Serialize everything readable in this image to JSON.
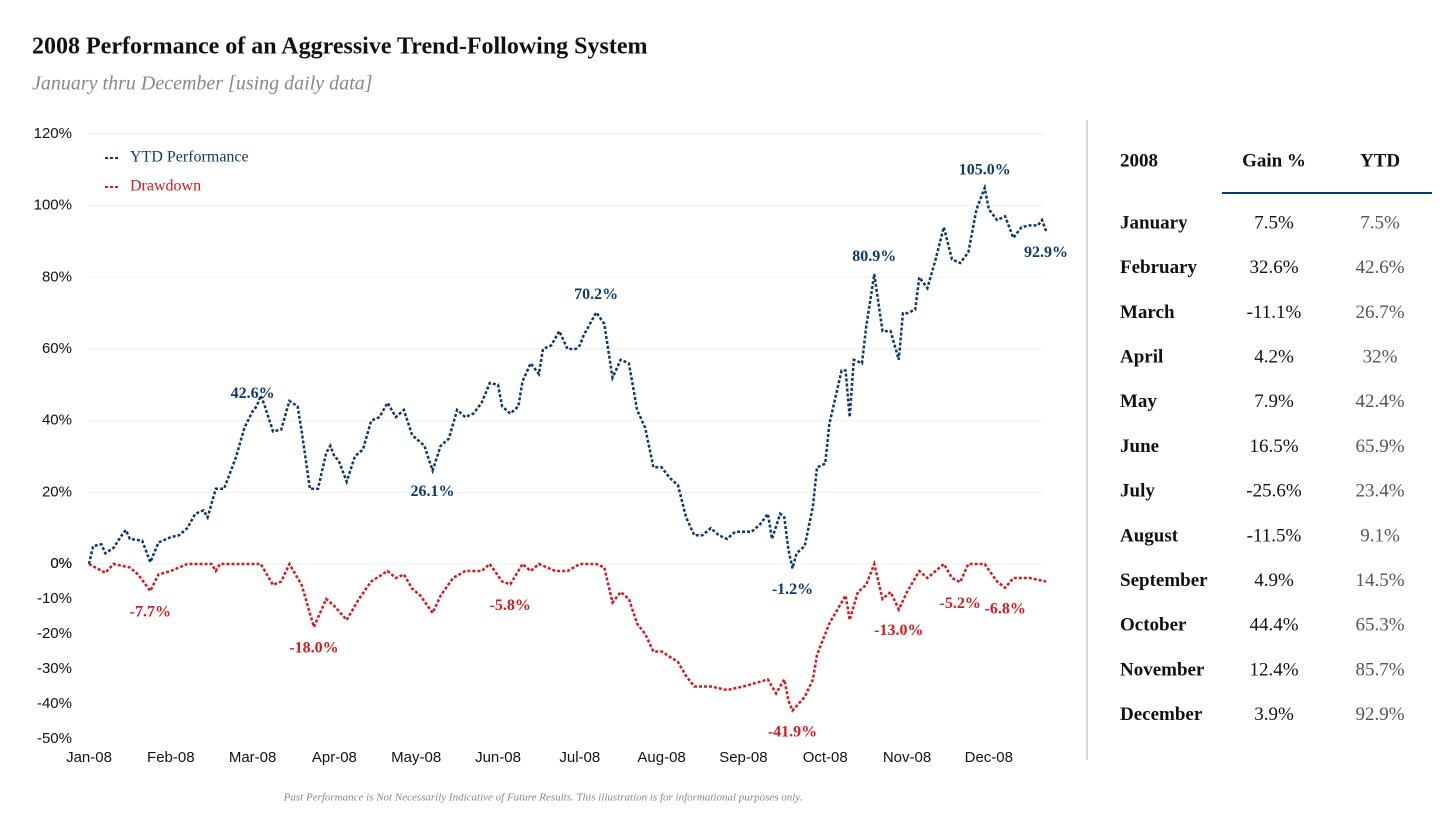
{
  "chart_data": {
    "type": "line",
    "title": "2008 Performance of an Aggressive Trend-Following System",
    "subtitle": "January thru December [using daily data]",
    "note": "Past Performance is Not Necessarily Indicative of Future Results. This illustration is for informational purposes only.",
    "xlim": [
      0,
      12
    ],
    "xticks": [
      {
        "value": 0,
        "label": "Jan-08"
      },
      {
        "value": 1,
        "label": "Feb-08"
      },
      {
        "value": 2,
        "label": "Mar-08"
      },
      {
        "value": 3,
        "label": "Apr-08"
      },
      {
        "value": 4,
        "label": "May-08"
      },
      {
        "value": 5,
        "label": "Jun-08"
      },
      {
        "value": 6,
        "label": "Jul-08"
      },
      {
        "value": 7,
        "label": "Aug-08"
      },
      {
        "value": 8,
        "label": "Sep-08"
      },
      {
        "value": 9,
        "label": "Oct-08"
      },
      {
        "value": 10,
        "label": "Nov-08"
      },
      {
        "value": 11,
        "label": "Dec-08"
      }
    ],
    "ylim": [
      0,
      120
    ],
    "yticks": [
      {
        "value": 0,
        "label": "0%"
      },
      {
        "value": 20,
        "label": "20%"
      },
      {
        "value": 40,
        "label": "40%"
      },
      {
        "value": 60,
        "label": "60%"
      },
      {
        "value": 80,
        "label": "80%"
      },
      {
        "value": 100,
        "label": "100%"
      },
      {
        "value": 120,
        "label": "120%"
      }
    ],
    "y2lim": [
      -50,
      0
    ],
    "y2ticks": [
      {
        "value": -50,
        "label": "-50%"
      },
      {
        "value": -40,
        "label": "-40%"
      },
      {
        "value": -30,
        "label": "-30%"
      },
      {
        "value": -20,
        "label": "-20%"
      },
      {
        "value": -10,
        "label": "-10%"
      },
      {
        "value": 0,
        "label": "0%"
      }
    ],
    "grid": true,
    "legend": "upper left",
    "line_style": "dotted",
    "series": [
      {
        "name": "YTD Performance",
        "color": "#0b3a6e",
        "x": [
          0,
          0.05,
          0.15,
          0.2,
          0.3,
          0.4,
          0.45,
          0.5,
          0.65,
          0.75,
          0.85,
          1,
          1.1,
          1.2,
          1.3,
          1.4,
          1.45,
          1.55,
          1.65,
          1.75,
          1.8,
          1.9,
          2,
          2.05,
          2.1,
          2.15,
          2.25,
          2.35,
          2.45,
          2.55,
          2.6,
          2.7,
          2.8,
          2.9,
          2.95,
          3,
          3.05,
          3.15,
          3.25,
          3.35,
          3.45,
          3.55,
          3.65,
          3.75,
          3.85,
          3.95,
          4,
          4.1,
          4.2,
          4.3,
          4.4,
          4.5,
          4.6,
          4.7,
          4.8,
          4.9,
          5,
          5.05,
          5.15,
          5.25,
          5.3,
          5.4,
          5.5,
          5.55,
          5.65,
          5.75,
          5.85,
          5.95,
          6,
          6.05,
          6.1,
          6.2,
          6.3,
          6.4,
          6.5,
          6.6,
          6.7,
          6.8,
          6.9,
          7,
          7.1,
          7.2,
          7.3,
          7.4,
          7.5,
          7.6,
          7.7,
          7.8,
          7.9,
          8,
          8.1,
          8.2,
          8.3,
          8.35,
          8.45,
          8.5,
          8.55,
          8.6,
          8.65,
          8.75,
          8.85,
          8.9,
          9,
          9.05,
          9.1,
          9.2,
          9.25,
          9.3,
          9.35,
          9.45,
          9.5,
          9.6,
          9.7,
          9.8,
          9.9,
          9.95,
          10,
          10.1,
          10.15,
          10.25,
          10.35,
          10.45,
          10.55,
          10.65,
          10.75,
          10.85,
          10.95,
          11,
          11.1,
          11.2,
          11.3,
          11.4,
          11.5,
          11.6,
          11.65,
          11.7
        ],
        "values": [
          0,
          5,
          5.5,
          3,
          4.5,
          8,
          9.5,
          7,
          6.5,
          0.5,
          6,
          7.5,
          8,
          10,
          14,
          15,
          13,
          21,
          21,
          27,
          30,
          38,
          42.6,
          44,
          47,
          44,
          37,
          37.5,
          45.5,
          44,
          37,
          21,
          21,
          31,
          33,
          30,
          29,
          23,
          30,
          32,
          40,
          41,
          45,
          41,
          43,
          36,
          35,
          33,
          26.1,
          33,
          35,
          43,
          41,
          42,
          45,
          50.5,
          50,
          44,
          42,
          44,
          51,
          56,
          53,
          60,
          61,
          65,
          60,
          60,
          61,
          64,
          66,
          70.2,
          67,
          52,
          57,
          56,
          43,
          38,
          27,
          27,
          24,
          22,
          13,
          8,
          8,
          10,
          8,
          7,
          9,
          9,
          9,
          11,
          14,
          7,
          14,
          13,
          4,
          -1.2,
          3,
          5,
          16,
          27,
          28,
          39,
          44,
          54,
          54,
          41,
          57,
          56,
          66,
          80.9,
          65,
          65,
          57,
          70,
          70,
          71,
          80,
          77,
          85,
          94,
          85,
          84,
          87,
          99,
          105,
          99,
          96,
          97,
          91,
          94,
          94.5,
          94.5,
          96,
          92.9
        ],
        "value_labels": [
          null,
          null,
          null,
          null,
          null,
          null,
          null,
          null,
          null,
          null,
          null,
          null,
          null,
          null,
          null,
          null,
          null,
          null,
          null,
          null,
          null,
          null,
          "42.6%",
          null,
          null,
          null,
          null,
          null,
          null,
          null,
          null,
          null,
          null,
          null,
          null,
          null,
          null,
          null,
          null,
          null,
          null,
          null,
          null,
          null,
          null,
          null,
          null,
          null,
          "26.1%",
          null,
          null,
          null,
          null,
          null,
          null,
          null,
          null,
          null,
          null,
          null,
          null,
          null,
          null,
          null,
          null,
          null,
          null,
          null,
          null,
          null,
          null,
          "70.2%",
          null,
          null,
          null,
          null,
          null,
          null,
          null,
          null,
          null,
          null,
          null,
          null,
          null,
          null,
          null,
          null,
          null,
          null,
          null,
          null,
          null,
          null,
          null,
          null,
          null,
          "-1.2%",
          null,
          null,
          null,
          null,
          null,
          null,
          null,
          null,
          null,
          null,
          null,
          null,
          null,
          "80.9%",
          null,
          null,
          null,
          null,
          null,
          null,
          null,
          null,
          null,
          null,
          null,
          null,
          null,
          null,
          "105.0%",
          null,
          null,
          null,
          null,
          null,
          null,
          null,
          null,
          "92.9%"
        ]
      },
      {
        "name": "Drawdown",
        "color": "#d7191c",
        "axis": "y2",
        "x": [
          0,
          0.2,
          0.3,
          0.5,
          0.6,
          0.75,
          0.85,
          1,
          1.2,
          1.5,
          1.55,
          1.6,
          2.1,
          2.25,
          2.35,
          2.45,
          2.6,
          2.75,
          2.9,
          3,
          3.15,
          3.3,
          3.45,
          3.65,
          3.75,
          3.85,
          3.95,
          4.05,
          4.2,
          4.3,
          4.45,
          4.6,
          4.8,
          4.9,
          5.05,
          5.15,
          5.3,
          5.4,
          5.5,
          5.7,
          5.85,
          6,
          6.2,
          6.3,
          6.4,
          6.5,
          6.6,
          6.7,
          6.8,
          6.9,
          7,
          7.2,
          7.3,
          7.4,
          7.6,
          7.8,
          8,
          8.3,
          8.4,
          8.5,
          8.55,
          8.6,
          8.75,
          8.85,
          8.9,
          9.05,
          9.15,
          9.25,
          9.3,
          9.4,
          9.5,
          9.6,
          9.7,
          9.8,
          9.9,
          10,
          10.15,
          10.25,
          10.45,
          10.55,
          10.65,
          10.75,
          10.95,
          11.1,
          11.2,
          11.3,
          11.5,
          11.7
        ],
        "values": [
          0,
          -2.5,
          0,
          -1,
          -3,
          -7.7,
          -3,
          -2,
          0,
          0,
          -2,
          0,
          0,
          -6,
          -5,
          0,
          -6,
          -18,
          -10,
          -12,
          -16,
          -10,
          -5,
          -2,
          -4,
          -3,
          -7,
          -9,
          -14,
          -9,
          -4,
          -2,
          -2,
          0,
          -5,
          -5.8,
          0,
          -2,
          0,
          -2,
          -2,
          0,
          0,
          -1,
          -11,
          -8,
          -10,
          -17,
          -20,
          -25,
          -25,
          -28,
          -32,
          -35,
          -35,
          -36,
          -35,
          -33,
          -37,
          -33,
          -39,
          -41.9,
          -38,
          -33,
          -26,
          -17,
          -13,
          -9,
          -16,
          -8,
          -6,
          0,
          -10,
          -8,
          -13,
          -8,
          -2,
          -4,
          0,
          -4,
          -5.2,
          0,
          0,
          -5,
          -6.8,
          -4,
          -4,
          -5
        ],
        "value_labels": [
          null,
          null,
          null,
          null,
          null,
          "-7.7%",
          null,
          null,
          null,
          null,
          null,
          null,
          null,
          null,
          null,
          null,
          null,
          "-18.0%",
          null,
          null,
          null,
          null,
          null,
          null,
          null,
          null,
          null,
          null,
          null,
          null,
          null,
          null,
          null,
          null,
          null,
          "-5.8%",
          null,
          null,
          null,
          null,
          null,
          null,
          null,
          null,
          null,
          null,
          null,
          null,
          null,
          null,
          null,
          null,
          null,
          null,
          null,
          null,
          null,
          null,
          null,
          null,
          null,
          "-41.9%",
          null,
          null,
          null,
          null,
          null,
          null,
          null,
          null,
          null,
          null,
          null,
          null,
          "-13.0%",
          null,
          null,
          null,
          null,
          null,
          "-5.2%",
          null,
          null,
          null,
          "-6.8%",
          null,
          null,
          null
        ]
      }
    ]
  },
  "table": {
    "columns": [
      "2008",
      "Gain %",
      "YTD"
    ],
    "rows": [
      [
        "January",
        "7.5%",
        "7.5%"
      ],
      [
        "February",
        "32.6%",
        "42.6%"
      ],
      [
        "March",
        "-11.1%",
        "26.7%"
      ],
      [
        "April",
        "4.2%",
        "32%"
      ],
      [
        "May",
        "7.9%",
        "42.4%"
      ],
      [
        "June",
        "16.5%",
        "65.9%"
      ],
      [
        "July",
        "-25.6%",
        "23.4%"
      ],
      [
        "August",
        "-11.5%",
        "9.1%"
      ],
      [
        "September",
        "4.9%",
        "14.5%"
      ],
      [
        "October",
        "44.4%",
        "65.3%"
      ],
      [
        "November",
        "12.4%",
        "85.7%"
      ],
      [
        "December",
        "3.9%",
        "92.9%"
      ]
    ]
  }
}
